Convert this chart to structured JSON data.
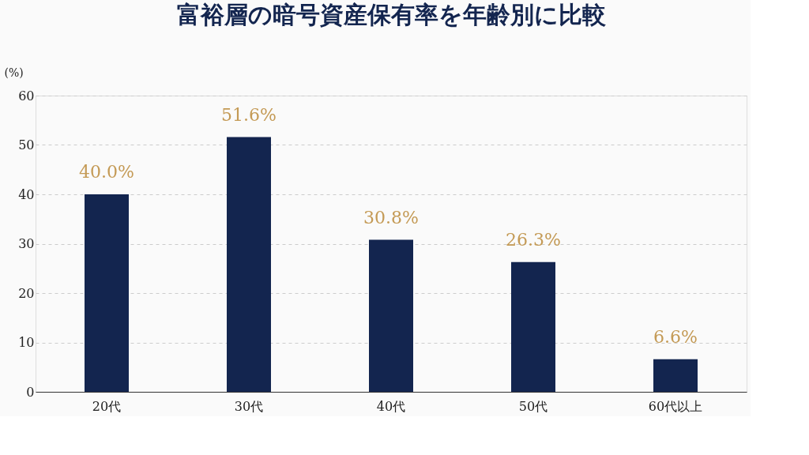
{
  "chart_data": {
    "type": "bar",
    "title": "富裕層の暗号資産保有率を年齢別に比較",
    "ylabel": "(%)",
    "categories": [
      "20代",
      "30代",
      "40代",
      "50代",
      "60代以上"
    ],
    "values": [
      40.0,
      51.6,
      30.8,
      26.3,
      6.6
    ],
    "value_labels": [
      "40.0%",
      "51.6%",
      "30.8%",
      "26.3%",
      "6.6%"
    ],
    "color": "#13254f",
    "ylim": [
      0,
      60
    ],
    "yticks": [
      0,
      10,
      20,
      30,
      40,
      50,
      60
    ],
    "grid": "y"
  }
}
